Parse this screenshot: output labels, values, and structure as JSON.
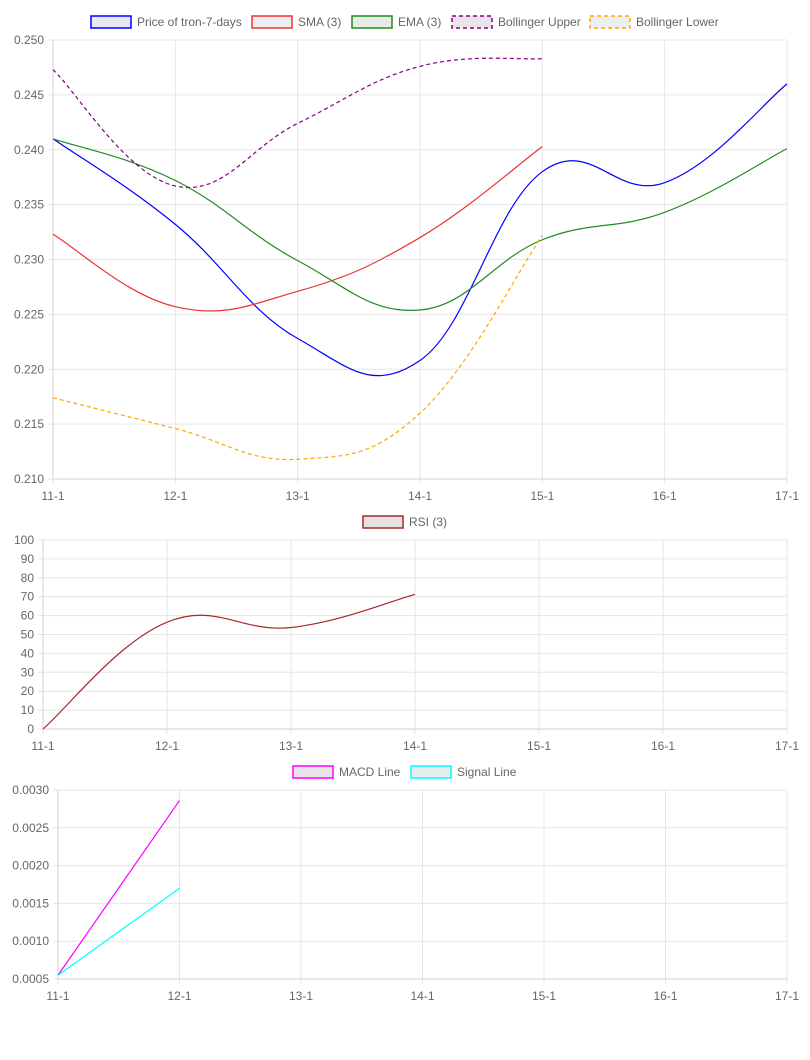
{
  "chart_data": [
    {
      "type": "line",
      "categories": [
        "11-1",
        "12-1",
        "13-1",
        "14-1",
        "15-1",
        "16-1",
        "17-1"
      ],
      "ylim": [
        0.21,
        0.25
      ],
      "yticks": [
        "0.210",
        "0.215",
        "0.220",
        "0.225",
        "0.230",
        "0.235",
        "0.240",
        "0.245",
        "0.250"
      ],
      "grid": true,
      "legend_position": "top",
      "series": [
        {
          "name": "Price of tron-7-days",
          "color": "#0000ff",
          "fill": "#e8e8f0",
          "dashed": false,
          "values": [
            0.241,
            0.2332,
            0.2228,
            0.2208,
            0.238,
            0.237,
            0.246
          ]
        },
        {
          "name": "SMA (3)",
          "color": "#ee3333",
          "fill": "#eeeeee",
          "dashed": false,
          "values": [
            0.2323,
            0.2257,
            0.2271,
            0.232,
            0.2403,
            null,
            null
          ]
        },
        {
          "name": "EMA (3)",
          "color": "#228b22",
          "fill": "#e8ebe8",
          "dashed": false,
          "values": [
            0.241,
            0.2372,
            0.2299,
            0.2254,
            0.2318,
            0.2343,
            0.2401
          ]
        },
        {
          "name": "Bollinger Upper",
          "color": "#800080",
          "fill": "#e8e4ea",
          "dashed": true,
          "values": [
            0.2473,
            0.2367,
            0.2424,
            0.2476,
            0.2483,
            null,
            null
          ]
        },
        {
          "name": "Bollinger Lower",
          "color": "#ffa500",
          "fill": "#eeeeee",
          "dashed": true,
          "values": [
            0.2174,
            0.2146,
            0.2118,
            0.216,
            0.2322,
            null,
            null
          ]
        }
      ]
    },
    {
      "type": "line",
      "categories": [
        "11-1",
        "12-1",
        "13-1",
        "14-1",
        "15-1",
        "16-1",
        "17-1"
      ],
      "ylim": [
        0,
        100
      ],
      "yticks": [
        "0",
        "10",
        "20",
        "30",
        "40",
        "50",
        "60",
        "70",
        "80",
        "90",
        "100"
      ],
      "grid": true,
      "legend_position": "top",
      "series": [
        {
          "name": "RSI (3)",
          "color": "#a52a2a",
          "fill": "#e6e0e0",
          "dashed": false,
          "values": [
            0,
            56.5,
            53.7,
            71.2,
            null,
            null,
            null
          ]
        }
      ]
    },
    {
      "type": "line",
      "categories": [
        "11-1",
        "12-1",
        "13-1",
        "14-1",
        "15-1",
        "16-1",
        "17-1"
      ],
      "ylim": [
        0.0005,
        0.003
      ],
      "yticks": [
        "0.0005",
        "0.0010",
        "0.0015",
        "0.0020",
        "0.0025",
        "0.0030"
      ],
      "grid": true,
      "legend_position": "top",
      "series": [
        {
          "name": "MACD Line",
          "color": "#ff00ff",
          "fill": "#e8e4ea",
          "dashed": false,
          "values": [
            0.00055,
            0.00286,
            null,
            null,
            null,
            null,
            null
          ]
        },
        {
          "name": "Signal Line",
          "color": "#00ffff",
          "fill": "#e4eeee",
          "dashed": false,
          "values": [
            0.00055,
            0.0017,
            null,
            null,
            null,
            null,
            null
          ]
        }
      ]
    }
  ]
}
